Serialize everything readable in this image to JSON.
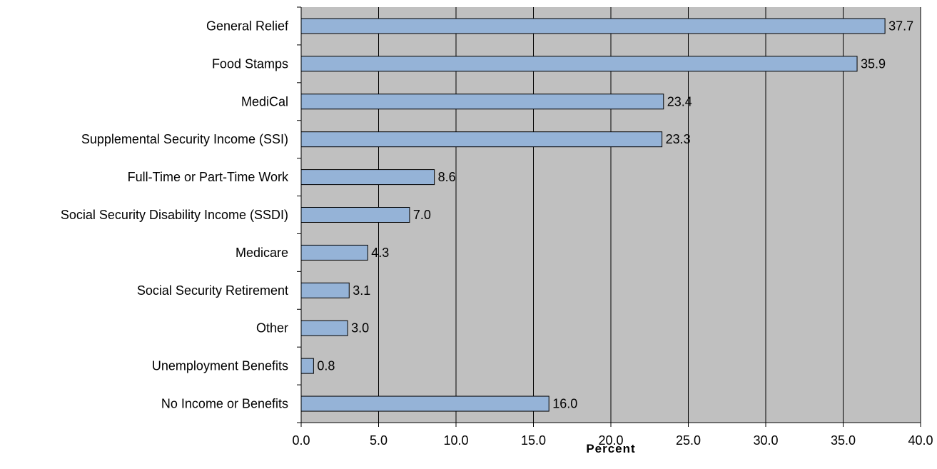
{
  "chart_data": {
    "type": "bar",
    "orientation": "horizontal",
    "title": "",
    "xlabel": "Percent",
    "ylabel": "",
    "xlim": [
      0,
      40
    ],
    "xticks": [
      0,
      5,
      10,
      15,
      20,
      25,
      30,
      35,
      40
    ],
    "xtick_labels": [
      "0.0",
      "5.0",
      "10.0",
      "15.0",
      "20.0",
      "25.0",
      "30.0",
      "35.0",
      "40.0"
    ],
    "grid": "vertical",
    "categories": [
      "General Relief",
      "Food Stamps",
      "MediCal",
      "Supplemental Security Income (SSI)",
      "Full-Time or Part-Time Work",
      "Social Security Disability Income (SSDI)",
      "Medicare",
      "Social Security Retirement",
      "Other",
      "Unemployment Benefits",
      "No Income or Benefits"
    ],
    "values": [
      37.7,
      35.9,
      23.4,
      23.3,
      8.6,
      7.0,
      4.3,
      3.1,
      3.0,
      0.8,
      16.0
    ],
    "value_labels": [
      "37.7",
      "35.9",
      "23.4",
      "23.3",
      "8.6",
      "7.0",
      "4.3",
      "3.1",
      "3.0",
      "0.8",
      "16.0"
    ],
    "colors": {
      "bar": "#95b3d7",
      "bar_edge": "#000000",
      "plot_background": "#c0c0c0",
      "gridline": "#000000"
    }
  }
}
